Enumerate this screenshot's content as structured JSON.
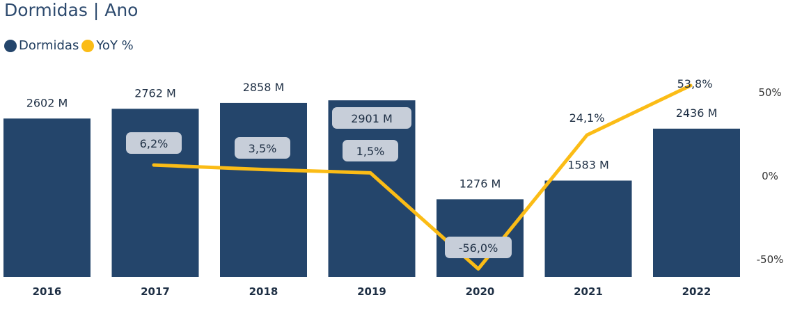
{
  "title": "Dormidas | Ano",
  "legend": [
    {
      "label": "Dormidas",
      "color": "#24456b"
    },
    {
      "label": "YoY %",
      "color": "#fbbc16"
    }
  ],
  "chart_data": {
    "type": "bar",
    "categories": [
      "2016",
      "2017",
      "2018",
      "2019",
      "2020",
      "2021",
      "2022"
    ],
    "series": [
      {
        "name": "Dormidas",
        "values": [
          2602,
          2762,
          2858,
          2901,
          1276,
          1583,
          2436
        ],
        "labels": [
          "2602 M",
          "2762 M",
          "2858 M",
          "2901 M",
          "1276 M",
          "1583 M",
          "2436 M"
        ],
        "color": "#24456b"
      },
      {
        "name": "YoY %",
        "type": "line",
        "values": [
          null,
          6.2,
          3.5,
          1.5,
          -56.0,
          24.1,
          53.8
        ],
        "labels": [
          "",
          "6,2%",
          "3,5%",
          "1,5%",
          "-56,0%",
          "24,1%",
          "53,8%"
        ],
        "color": "#fbbc16"
      }
    ],
    "y2_ticks": [
      {
        "value": 50,
        "label": "50%"
      },
      {
        "value": 0,
        "label": "0%"
      },
      {
        "value": -50,
        "label": "-50%"
      }
    ],
    "legend_position": "top-left",
    "grid": false
  }
}
